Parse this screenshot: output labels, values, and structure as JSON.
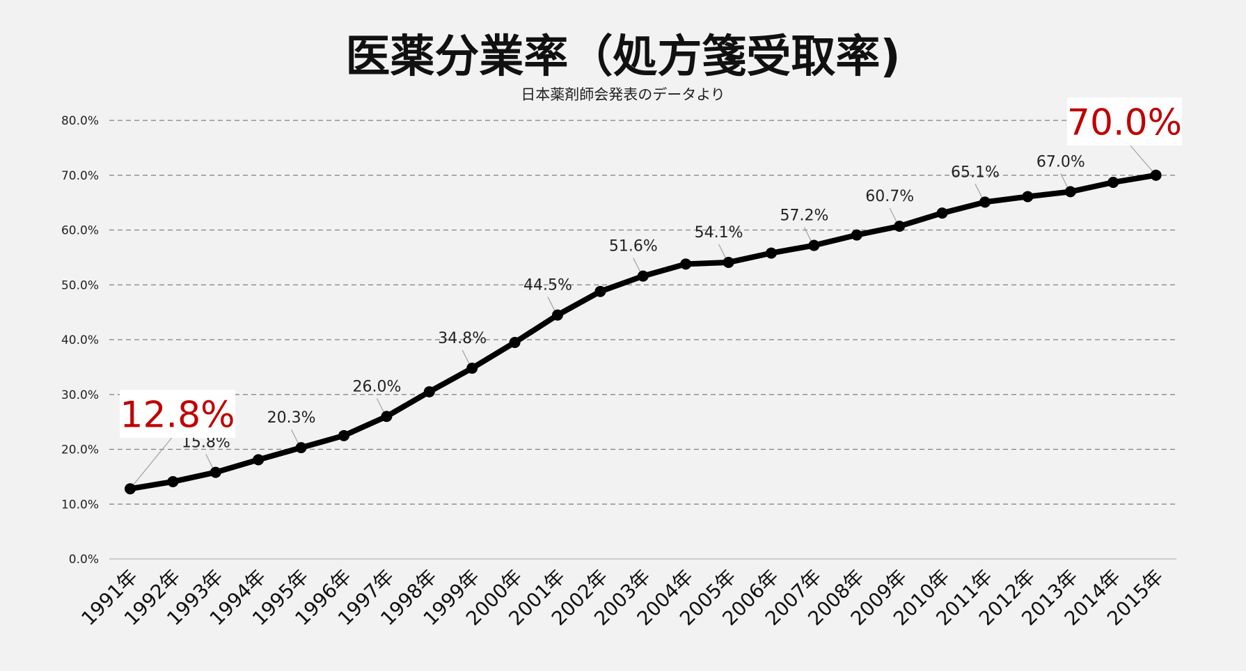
{
  "chart_data": {
    "type": "line",
    "title": "医薬分業率（処方箋受取率)",
    "subtitle": "日本薬剤師会発表のデータより",
    "categories": [
      "1991年",
      "1992年",
      "1993年",
      "1994年",
      "1995年",
      "1996年",
      "1997年",
      "1998年",
      "1999年",
      "2000年",
      "2001年",
      "2002年",
      "2003年",
      "2004年",
      "2005年",
      "2006年",
      "2007年",
      "2008年",
      "2009年",
      "2010年",
      "2011年",
      "2012年",
      "2013年",
      "2014年",
      "2015年"
    ],
    "values": [
      12.8,
      14.1,
      15.8,
      18.1,
      20.3,
      22.5,
      26.0,
      30.5,
      34.8,
      39.5,
      44.5,
      48.8,
      51.6,
      53.8,
      54.1,
      55.8,
      57.2,
      59.1,
      60.7,
      63.1,
      65.1,
      66.1,
      67.0,
      68.7,
      70.0
    ],
    "y_ticks": [
      "0.0%",
      "10.0%",
      "20.0%",
      "30.0%",
      "40.0%",
      "50.0%",
      "60.0%",
      "70.0%",
      "80.0%"
    ],
    "ylim": [
      0,
      80
    ],
    "grid": true,
    "legend": "none",
    "line_color": "#000000",
    "data_labels": [
      {
        "index": 2,
        "text": "15.8%"
      },
      {
        "index": 4,
        "text": "20.3%"
      },
      {
        "index": 6,
        "text": "26.0%"
      },
      {
        "index": 8,
        "text": "34.8%"
      },
      {
        "index": 10,
        "text": "44.5%"
      },
      {
        "index": 12,
        "text": "51.6%"
      },
      {
        "index": 14,
        "text": "54.1%"
      },
      {
        "index": 16,
        "text": "57.2%"
      },
      {
        "index": 18,
        "text": "60.7%"
      },
      {
        "index": 20,
        "text": "65.1%"
      },
      {
        "index": 22,
        "text": "67.0%"
      }
    ],
    "callouts": [
      {
        "index": 0,
        "text": "12.8%",
        "color": "#c00000"
      },
      {
        "index": 24,
        "text": "70.0%",
        "color": "#c00000"
      }
    ]
  }
}
